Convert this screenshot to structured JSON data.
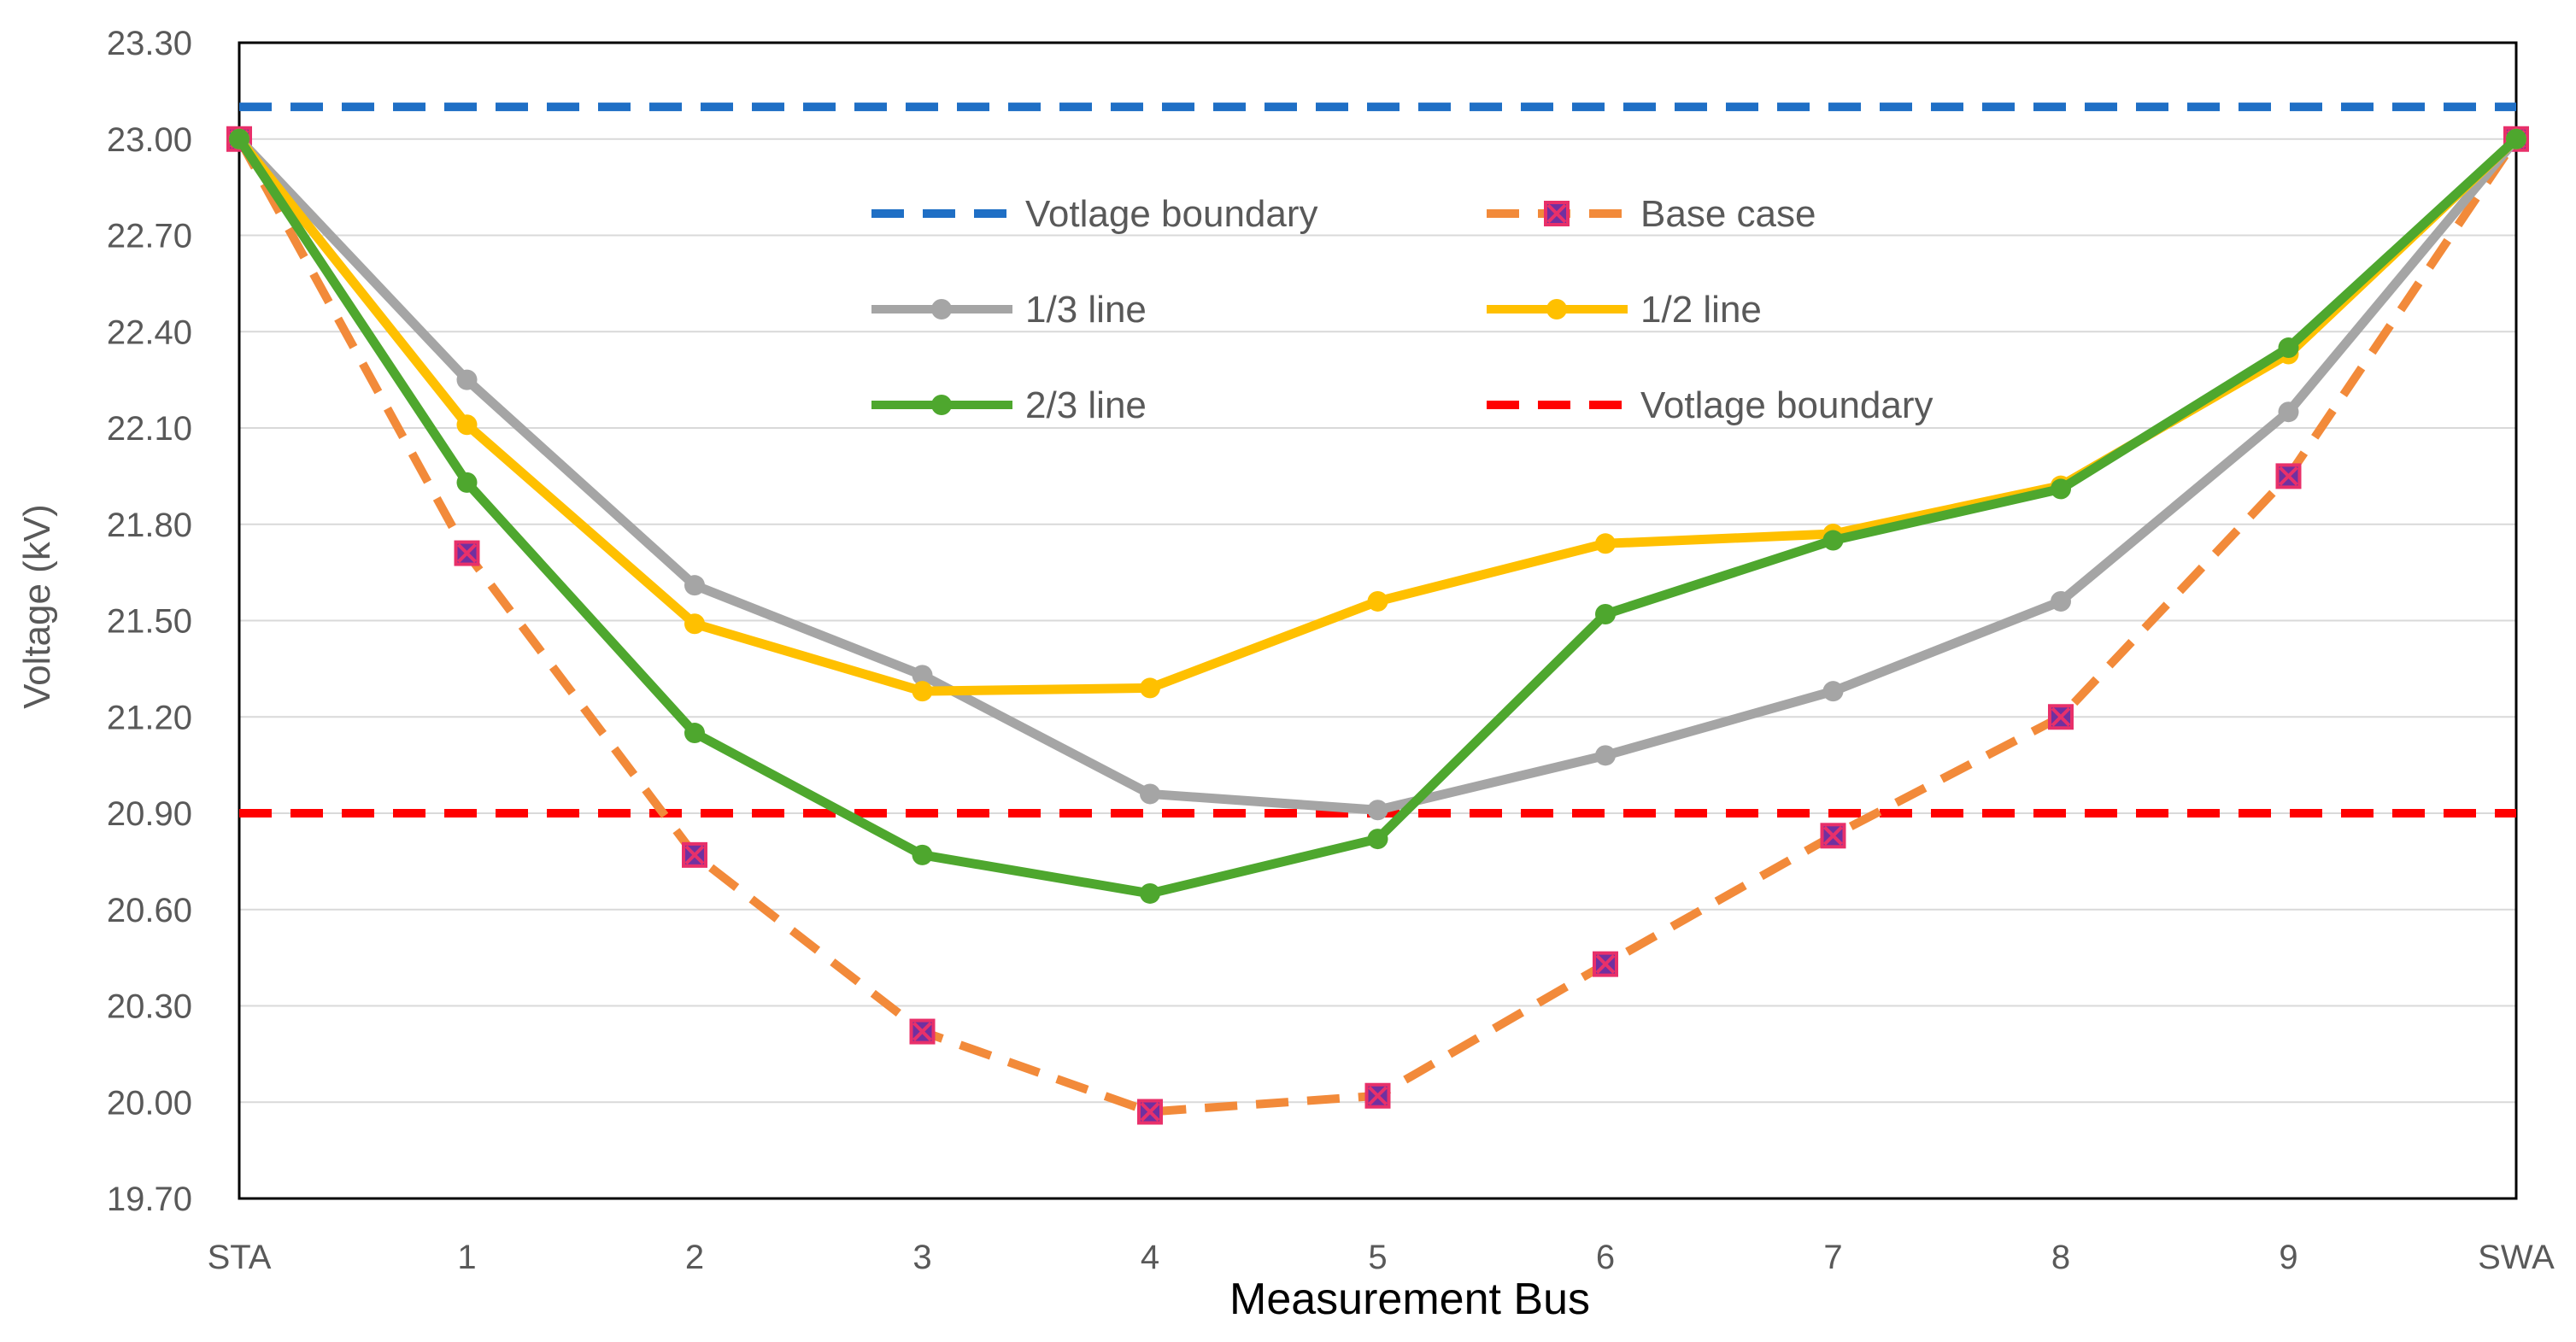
{
  "chart_data": {
    "type": "line",
    "title": "",
    "xlabel": "Measurement Bus",
    "ylabel": "Voltage (kV)",
    "categories": [
      "STA",
      "1",
      "2",
      "3",
      "4",
      "5",
      "6",
      "7",
      "8",
      "9",
      "SWA"
    ],
    "ylim": [
      19.7,
      23.3
    ],
    "y_ticks": [
      "19.70",
      "20.00",
      "20.30",
      "20.60",
      "20.90",
      "21.20",
      "21.50",
      "21.80",
      "22.10",
      "22.40",
      "22.70",
      "23.00",
      "23.30"
    ],
    "grid": true,
    "legend_position": "top-center",
    "series": [
      {
        "name": "Votlage boundary",
        "style": "dashed",
        "color": "#1f6fc5",
        "marker": "none",
        "values": [
          23.1,
          23.1,
          23.1,
          23.1,
          23.1,
          23.1,
          23.1,
          23.1,
          23.1,
          23.1,
          23.1
        ]
      },
      {
        "name": "Base case",
        "style": "dashed",
        "color": "#f28a3a",
        "marker": "square-x",
        "marker_color": "#e8306a",
        "values": [
          23.0,
          21.71,
          20.77,
          20.22,
          19.97,
          20.02,
          20.43,
          20.83,
          21.2,
          21.95,
          23.0
        ]
      },
      {
        "name": "1/3 line",
        "style": "solid",
        "color": "#a5a5a5",
        "marker": "circle",
        "values": [
          23.0,
          22.25,
          21.61,
          21.33,
          20.96,
          20.91,
          21.08,
          21.28,
          21.56,
          22.15,
          23.0
        ]
      },
      {
        "name": "1/2 line",
        "style": "solid",
        "color": "#ffc000",
        "marker": "circle",
        "values": [
          23.0,
          22.11,
          21.49,
          21.28,
          21.29,
          21.56,
          21.74,
          21.77,
          21.92,
          22.33,
          23.0
        ]
      },
      {
        "name": "2/3 line",
        "style": "solid",
        "color": "#4ea72e",
        "marker": "circle",
        "values": [
          23.0,
          21.93,
          21.15,
          20.77,
          20.65,
          20.82,
          21.52,
          21.75,
          21.91,
          22.35,
          23.0
        ]
      },
      {
        "name": "Votlage boundary",
        "style": "dashed",
        "color": "#ff0000",
        "marker": "none",
        "values": [
          20.9,
          20.9,
          20.9,
          20.9,
          20.9,
          20.9,
          20.9,
          20.9,
          20.9,
          20.9,
          20.9
        ]
      }
    ]
  }
}
